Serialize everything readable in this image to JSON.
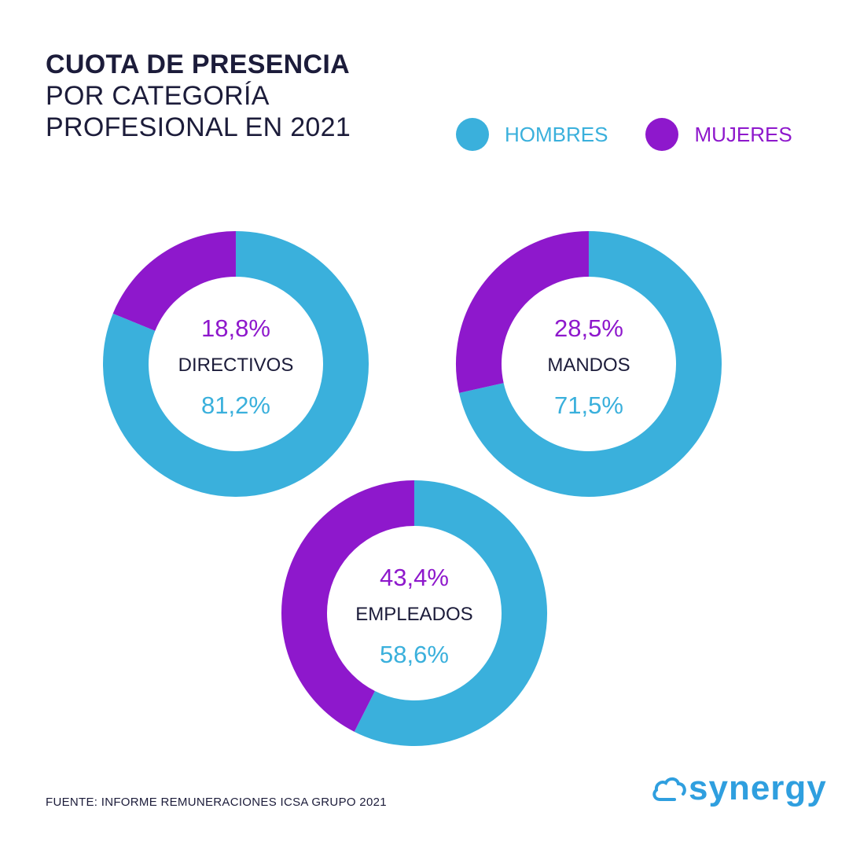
{
  "title": {
    "line1": "CUOTA DE PRESENCIA",
    "line2": "POR CATEGORÍA",
    "line3": "PROFESIONAL EN 2021"
  },
  "colors": {
    "hombres": "#3ab0dc",
    "mujeres": "#8e18cc",
    "text_dark": "#1c1c3a",
    "logo": "#2f9fdf"
  },
  "legend": [
    {
      "label": "HOMBRES",
      "color": "#3ab0dc"
    },
    {
      "label": "MUJERES",
      "color": "#8e18cc"
    }
  ],
  "chart_data": [
    {
      "type": "pie",
      "variant": "donut",
      "category": "DIRECTIVOS",
      "slices": [
        {
          "name": "HOMBRES",
          "value": 81.2,
          "label": "81,2%"
        },
        {
          "name": "MUJERES",
          "value": 18.8,
          "label": "18,8%"
        }
      ]
    },
    {
      "type": "pie",
      "variant": "donut",
      "category": "MANDOS",
      "slices": [
        {
          "name": "HOMBRES",
          "value": 71.5,
          "label": "71,5%"
        },
        {
          "name": "MUJERES",
          "value": 28.5,
          "label": "28,5%"
        }
      ]
    },
    {
      "type": "pie",
      "variant": "donut",
      "category": "EMPLEADOS",
      "slices": [
        {
          "name": "HOMBRES",
          "value": 58.6,
          "label": "58,6%"
        },
        {
          "name": "MUJERES",
          "value": 43.4,
          "label": "43,4%"
        }
      ]
    }
  ],
  "source": "FUENTE: INFORME REMUNERACIONES ICSA GRUPO 2021",
  "logo": {
    "text": "synergy",
    "icon": "cloud-icon"
  }
}
